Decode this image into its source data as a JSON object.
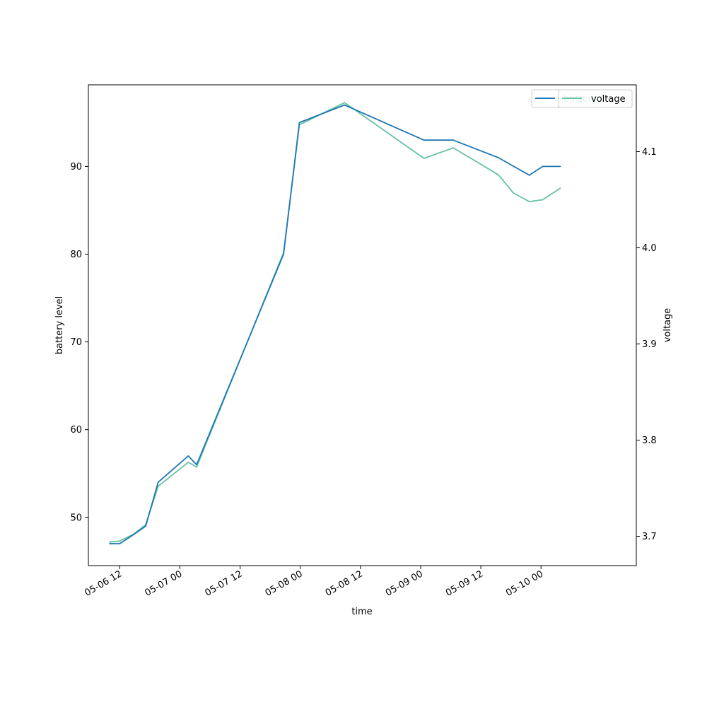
{
  "chart_data": {
    "type": "line",
    "xlabel": "time",
    "ylabel_left": "battery level",
    "ylabel_right": "voltage",
    "x_tick_labels": [
      "05-06 12",
      "05-07 00",
      "05-07 12",
      "05-08 00",
      "05-08 12",
      "05-09 00",
      "05-09 12",
      "05-10 00"
    ],
    "x_tick_times": [
      "2024-05-06T12:00",
      "2024-05-07T00:00",
      "2024-05-07T12:00",
      "2024-05-08T00:00",
      "2024-05-08T12:00",
      "2024-05-09T00:00",
      "2024-05-09T12:00",
      "2024-05-10T00:00"
    ],
    "xlim": [
      "2024-05-06T05:45",
      "2024-05-10T19:00"
    ],
    "y_left_ticks": [
      50,
      60,
      70,
      80,
      90
    ],
    "y_left_lim": [
      44.5,
      99.3
    ],
    "y_right_ticks": [
      "3.7",
      "3.8",
      "3.9",
      "4.0",
      "4.1"
    ],
    "y_right_lim": [
      3.6695,
      4.1695
    ],
    "legend_location": "top-right",
    "legend_entries": [
      "battery",
      "voltage"
    ],
    "series": [
      {
        "name": "battery",
        "axis": "left",
        "color": "#1f77b4",
        "x": [
          "2024-05-06T10:00",
          "2024-05-06T12:00",
          "2024-05-06T14:40",
          "2024-05-06T17:10",
          "2024-05-06T19:40",
          "2024-05-07T01:40",
          "2024-05-07T03:20",
          "2024-05-07T20:40",
          "2024-05-07T23:50",
          "2024-05-08T08:50",
          "2024-05-09T00:40",
          "2024-05-09T06:30",
          "2024-05-09T15:30",
          "2024-05-09T21:40",
          "2024-05-10T00:20",
          "2024-05-10T03:50"
        ],
        "values": [
          47,
          47,
          48,
          49,
          54,
          57,
          56,
          80,
          95,
          97,
          93,
          93,
          91,
          89,
          90,
          90
        ]
      },
      {
        "name": "voltage",
        "axis": "right",
        "color": "#66c2a5",
        "x": [
          "2024-05-06T10:00",
          "2024-05-06T12:00",
          "2024-05-06T14:40",
          "2024-05-06T17:10",
          "2024-05-06T19:40",
          "2024-05-07T01:40",
          "2024-05-07T03:20",
          "2024-05-07T20:40",
          "2024-05-07T23:50",
          "2024-05-08T08:50",
          "2024-05-09T00:40",
          "2024-05-09T06:30",
          "2024-05-09T15:30",
          "2024-05-09T18:30",
          "2024-05-09T21:40",
          "2024-05-10T00:20",
          "2024-05-10T03:50"
        ],
        "values": [
          3.694,
          3.695,
          3.702,
          3.712,
          3.752,
          3.777,
          3.772,
          3.995,
          4.128,
          4.151,
          4.093,
          4.104,
          4.076,
          4.057,
          4.048,
          4.05,
          4.062
        ]
      }
    ]
  }
}
